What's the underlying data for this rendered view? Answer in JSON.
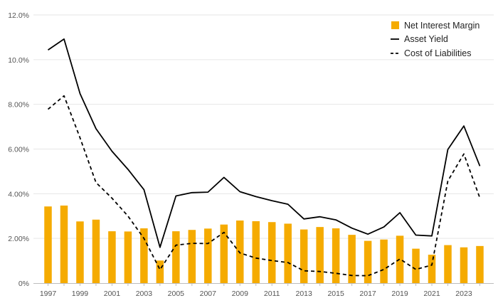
{
  "colors": {
    "bar": "#f5ab00",
    "line": "#000000",
    "grid": "#e6e6e6",
    "axis": "#bdbdbd",
    "tick_text": "#555555"
  },
  "chart_data": {
    "type": "bar",
    "title": "",
    "xlabel": "",
    "ylabel": "",
    "ylim": [
      0,
      0.12
    ],
    "yticks": [
      0,
      0.02,
      0.04,
      0.06,
      0.08,
      0.1,
      0.12
    ],
    "ytick_labels": [
      "0%",
      "2.00%",
      "4.00%",
      "6.00%",
      "8.00%",
      "10.0%",
      "12.0%"
    ],
    "xtick_labels": [
      "1997",
      "1999",
      "2001",
      "2003",
      "2005",
      "2007",
      "2009",
      "2011",
      "2013",
      "2015",
      "2017",
      "2019",
      "2021",
      "2023"
    ],
    "categories": [
      1997,
      1998,
      1999,
      2000,
      2001,
      2002,
      2003,
      2004,
      2005,
      2006,
      2007,
      2008,
      2009,
      2010,
      2011,
      2012,
      2013,
      2014,
      2015,
      2016,
      2017,
      2018,
      2019,
      2020,
      2021,
      2022,
      2023,
      2024
    ],
    "legend_position": "top-right",
    "series": [
      {
        "name": "Net Interest Margin",
        "kind": "bar",
        "values": [
          0.0343,
          0.0347,
          0.0276,
          0.0284,
          0.0232,
          0.0231,
          0.0245,
          0.0101,
          0.0232,
          0.0238,
          0.0244,
          0.0262,
          0.028,
          0.0277,
          0.0273,
          0.0266,
          0.024,
          0.0251,
          0.0245,
          0.0216,
          0.0189,
          0.0195,
          0.0212,
          0.0154,
          0.0127,
          0.017,
          0.016,
          0.0166
        ]
      },
      {
        "name": "Asset Yield",
        "kind": "line",
        "dash": "solid",
        "values": [
          0.1043,
          0.1092,
          0.0848,
          0.0691,
          0.059,
          0.0509,
          0.0418,
          0.016,
          0.039,
          0.0405,
          0.0407,
          0.0473,
          0.0409,
          0.0387,
          0.0369,
          0.0353,
          0.0287,
          0.0297,
          0.0283,
          0.0246,
          0.0219,
          0.0251,
          0.0315,
          0.0215,
          0.0211,
          0.0598,
          0.0703,
          0.0524
        ]
      },
      {
        "name": "Cost of Liabilities",
        "kind": "line",
        "dash": "dashed",
        "values": [
          0.0778,
          0.0838,
          0.065,
          0.045,
          0.038,
          0.03,
          0.02,
          0.006,
          0.017,
          0.0178,
          0.0177,
          0.0227,
          0.0135,
          0.0112,
          0.0101,
          0.0092,
          0.0055,
          0.0052,
          0.0044,
          0.0034,
          0.0033,
          0.0061,
          0.0108,
          0.0061,
          0.0081,
          0.0457,
          0.0578,
          0.0381
        ]
      }
    ]
  }
}
